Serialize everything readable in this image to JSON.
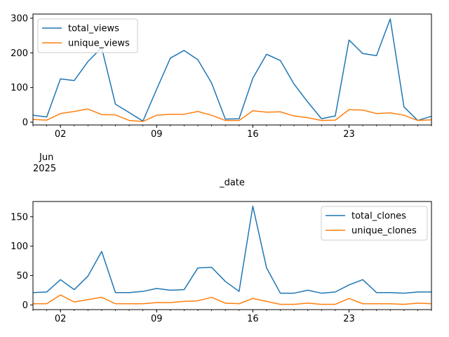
{
  "chart_data": [
    {
      "type": "line",
      "title": "",
      "xlabel": "_date",
      "ylabel": "",
      "x_start": "2025-05-31",
      "x_end": "2025-06-29",
      "ylim": [
        -8,
        312
      ],
      "yticks": [
        0,
        100,
        200,
        300
      ],
      "xticks": [
        {
          "date": "2025-06-02",
          "label": "02"
        },
        {
          "date": "2025-06-09",
          "label": "09"
        },
        {
          "date": "2025-06-16",
          "label": "16"
        },
        {
          "date": "2025-06-23",
          "label": "23"
        }
      ],
      "month_label": "Jun",
      "year_label": "2025",
      "grid": false,
      "legend_position": "upper-left",
      "series": [
        {
          "name": "total_views",
          "color": "#1f77b4",
          "x": [
            "2025-05-31",
            "2025-06-01",
            "2025-06-02",
            "2025-06-03",
            "2025-06-04",
            "2025-06-05",
            "2025-06-06",
            "2025-06-07",
            "2025-06-08",
            "2025-06-09",
            "2025-06-10",
            "2025-06-11",
            "2025-06-12",
            "2025-06-13",
            "2025-06-14",
            "2025-06-15",
            "2025-06-16",
            "2025-06-17",
            "2025-06-18",
            "2025-06-19",
            "2025-06-20",
            "2025-06-21",
            "2025-06-22",
            "2025-06-23",
            "2025-06-24",
            "2025-06-25",
            "2025-06-26",
            "2025-06-27",
            "2025-06-28",
            "2025-06-29"
          ],
          "values": [
            20,
            15,
            125,
            120,
            175,
            215,
            52,
            28,
            3,
            95,
            185,
            207,
            180,
            113,
            9,
            10,
            127,
            196,
            178,
            110,
            58,
            10,
            18,
            237,
            198,
            192,
            298,
            44,
            5,
            17
          ]
        },
        {
          "name": "unique_views",
          "color": "#ff7f0e",
          "x": [
            "2025-05-31",
            "2025-06-01",
            "2025-06-02",
            "2025-06-03",
            "2025-06-04",
            "2025-06-05",
            "2025-06-06",
            "2025-06-07",
            "2025-06-08",
            "2025-06-09",
            "2025-06-10",
            "2025-06-11",
            "2025-06-12",
            "2025-06-13",
            "2025-06-14",
            "2025-06-15",
            "2025-06-16",
            "2025-06-17",
            "2025-06-18",
            "2025-06-19",
            "2025-06-20",
            "2025-06-21",
            "2025-06-22",
            "2025-06-23",
            "2025-06-24",
            "2025-06-25",
            "2025-06-26",
            "2025-06-27",
            "2025-06-28",
            "2025-06-29"
          ],
          "values": [
            8,
            6,
            25,
            31,
            38,
            22,
            21,
            5,
            2,
            20,
            23,
            23,
            31,
            20,
            5,
            5,
            33,
            29,
            30,
            18,
            13,
            5,
            6,
            36,
            35,
            25,
            27,
            20,
            5,
            7
          ]
        }
      ]
    },
    {
      "type": "line",
      "title": "",
      "xlabel": "",
      "ylabel": "",
      "x_start": "2025-05-31",
      "x_end": "2025-06-29",
      "ylim": [
        -8,
        176
      ],
      "yticks": [
        0,
        50,
        100,
        150
      ],
      "xticks": [
        {
          "date": "2025-06-02",
          "label": "02"
        },
        {
          "date": "2025-06-09",
          "label": "09"
        },
        {
          "date": "2025-06-16",
          "label": "16"
        },
        {
          "date": "2025-06-23",
          "label": "23"
        }
      ],
      "grid": false,
      "legend_position": "upper-right",
      "series": [
        {
          "name": "total_clones",
          "color": "#1f77b4",
          "x": [
            "2025-05-31",
            "2025-06-01",
            "2025-06-02",
            "2025-06-03",
            "2025-06-04",
            "2025-06-05",
            "2025-06-06",
            "2025-06-07",
            "2025-06-08",
            "2025-06-09",
            "2025-06-10",
            "2025-06-11",
            "2025-06-12",
            "2025-06-13",
            "2025-06-14",
            "2025-06-15",
            "2025-06-16",
            "2025-06-17",
            "2025-06-18",
            "2025-06-19",
            "2025-06-20",
            "2025-06-21",
            "2025-06-22",
            "2025-06-23",
            "2025-06-24",
            "2025-06-25",
            "2025-06-26",
            "2025-06-27",
            "2025-06-28",
            "2025-06-29"
          ],
          "values": [
            21,
            22,
            43,
            26,
            49,
            91,
            21,
            21,
            23,
            28,
            25,
            26,
            63,
            64,
            40,
            23,
            168,
            63,
            20,
            20,
            25,
            20,
            22,
            34,
            43,
            21,
            21,
            20,
            22,
            22
          ]
        },
        {
          "name": "unique_clones",
          "color": "#ff7f0e",
          "x": [
            "2025-05-31",
            "2025-06-01",
            "2025-06-02",
            "2025-06-03",
            "2025-06-04",
            "2025-06-05",
            "2025-06-06",
            "2025-06-07",
            "2025-06-08",
            "2025-06-09",
            "2025-06-10",
            "2025-06-11",
            "2025-06-12",
            "2025-06-13",
            "2025-06-14",
            "2025-06-15",
            "2025-06-16",
            "2025-06-17",
            "2025-06-18",
            "2025-06-19",
            "2025-06-20",
            "2025-06-21",
            "2025-06-22",
            "2025-06-23",
            "2025-06-24",
            "2025-06-25",
            "2025-06-26",
            "2025-06-27",
            "2025-06-28",
            "2025-06-29"
          ],
          "values": [
            2,
            2,
            17,
            5,
            9,
            13,
            2,
            2,
            2,
            4,
            4,
            6,
            7,
            13,
            3,
            2,
            11,
            6,
            1,
            1,
            3,
            1,
            1,
            11,
            2,
            2,
            2,
            1,
            3,
            2
          ]
        }
      ]
    }
  ]
}
